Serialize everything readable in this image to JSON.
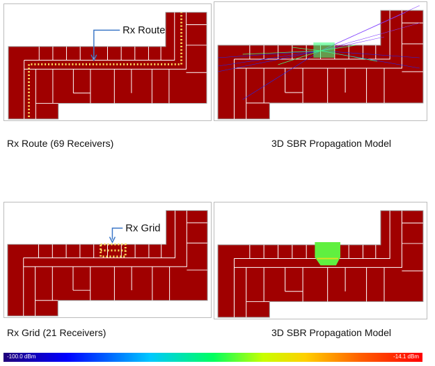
{
  "panels": [
    {
      "callout": "Rx Route",
      "caption": "Rx Route (69 Receivers)"
    },
    {
      "caption": "3D SBR Propagation Model"
    },
    {
      "callout": "Rx Grid",
      "caption": "Rx Grid (21 Receivers)"
    },
    {
      "caption": "3D SBR Propagation Model"
    }
  ],
  "colorbar": {
    "min_label": "-100.0 dBm",
    "max_label": "-14.1 dBm"
  }
}
